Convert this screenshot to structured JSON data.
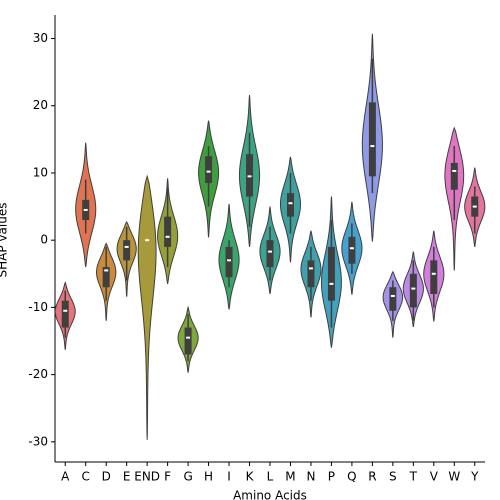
{
  "chart_data": {
    "type": "violin",
    "x_label": "Amino Acids",
    "y_label": "SHAP values",
    "categories": [
      "A",
      "C",
      "D",
      "E",
      "END",
      "F",
      "G",
      "H",
      "I",
      "K",
      "L",
      "M",
      "N",
      "P",
      "Q",
      "R",
      "S",
      "T",
      "V",
      "W",
      "Y"
    ],
    "colors": [
      "#e5737b",
      "#e07350",
      "#cc8a3d",
      "#b8953d",
      "#a79a3b",
      "#96a03a",
      "#7fa73b",
      "#3f9e3f",
      "#3aa46b",
      "#3ca484",
      "#3da193",
      "#3ea09f",
      "#40a0ad",
      "#42a1bd",
      "#45a2cf",
      "#8f9ae8",
      "#a792e9",
      "#bd89e4",
      "#d37fdc",
      "#e076c3",
      "#e3749f"
    ],
    "violin_max": [
      -6.3,
      14.5,
      -0.5,
      2.7,
      9.5,
      9.2,
      -10,
      17.8,
      5.4,
      21.6,
      5,
      12.4,
      1.4,
      6.5,
      5.7,
      30.7,
      -4.7,
      -1.7,
      1.4,
      16.7,
      10.8
    ],
    "violin_min": [
      -16.3,
      -4,
      -12,
      -8.4,
      -29.7,
      -6.5,
      -19.7,
      0.4,
      -10.3,
      -1,
      -8,
      -3.3,
      -11.5,
      -16,
      -8.1,
      -0.2,
      -14.5,
      -12.9,
      -12.1,
      -4.5,
      -1
    ],
    "whisker_high": [
      -7.5,
      9,
      -1,
      2,
      0,
      8,
      -11,
      14,
      0,
      16,
      2,
      10,
      -1,
      3,
      2.5,
      27,
      -6,
      -3,
      -1,
      14,
      8
    ],
    "q3": [
      -9,
      6,
      -4,
      0,
      0,
      3.5,
      -13,
      12.5,
      -1,
      12.8,
      0,
      7,
      -3,
      -1,
      0.5,
      20.5,
      -7,
      -5,
      -3,
      11.5,
      6.5
    ],
    "median": [
      -10.5,
      4.5,
      -4.5,
      -1,
      0,
      0.5,
      -14.5,
      10.2,
      -3,
      9.5,
      -1.7,
      5.5,
      -4.2,
      -6.5,
      -1.2,
      14,
      -8.3,
      -7.2,
      -5,
      10.3,
      5
    ],
    "q1": [
      -13,
      3,
      -7,
      -3,
      0,
      -1,
      -17,
      8.5,
      -5.5,
      6.5,
      -4,
      3.5,
      -7,
      -9,
      -3.5,
      9.5,
      -10.5,
      -10,
      -8,
      7.5,
      3.5
    ],
    "whisker_low": [
      -14.5,
      1,
      -9,
      -6,
      0,
      -4,
      -18,
      5,
      -7,
      2,
      -6,
      1,
      -9,
      -13,
      -5,
      7,
      -12,
      -12,
      -10,
      3,
      1
    ],
    "ylim": [
      -33,
      33.5
    ],
    "yticks": [
      -30,
      -20,
      -10,
      0,
      10,
      20,
      30
    ]
  }
}
